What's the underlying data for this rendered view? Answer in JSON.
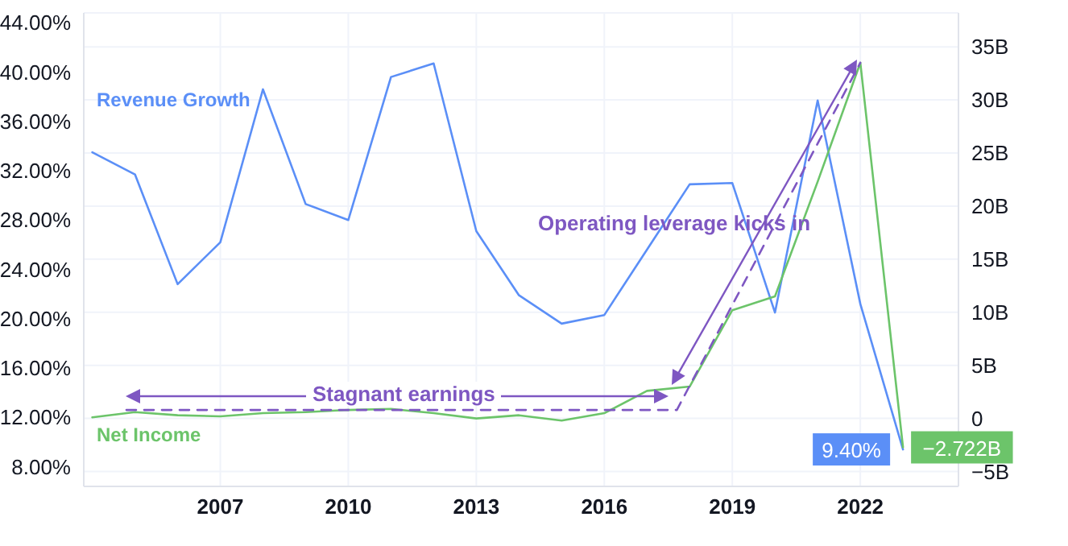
{
  "chart_data": {
    "type": "line",
    "legend": false,
    "grid": true,
    "marker": "none",
    "xlim": [
      2003.8,
      2024.3
    ],
    "xticks": [
      2007,
      2010,
      2013,
      2016,
      2019,
      2022
    ],
    "ylim": [
      6.4,
      44.8
    ],
    "yticks": [
      {
        "value": 8,
        "label": "8.00%"
      },
      {
        "value": 12,
        "label": "12.00%"
      },
      {
        "value": 16,
        "label": "16.00%"
      },
      {
        "value": 20,
        "label": "20.00%"
      },
      {
        "value": 24,
        "label": "24.00%"
      },
      {
        "value": 28,
        "label": "28.00%"
      },
      {
        "value": 32,
        "label": "32.00%"
      },
      {
        "value": 36,
        "label": "36.00%"
      },
      {
        "value": 40,
        "label": "40.00%"
      },
      {
        "value": 44,
        "label": "44.00%"
      }
    ],
    "y2lim": [
      -6.4,
      38.2
    ],
    "y2ticks": [
      {
        "value": -5,
        "label": "−5B"
      },
      0,
      {
        "value": 5,
        "label": "5B"
      },
      {
        "value": 10,
        "label": "10B"
      },
      {
        "value": 15,
        "label": "15B"
      },
      {
        "value": 20,
        "label": "20B"
      },
      {
        "value": 25,
        "label": "25B"
      },
      {
        "value": 30,
        "label": "30B"
      },
      {
        "value": 35,
        "label": "35B"
      }
    ],
    "series": [
      {
        "name": "Revenue Growth",
        "color": "#5b8ff7",
        "x": [
          2004,
          2005,
          2006,
          2007,
          2008,
          2009,
          2010,
          2011,
          2012,
          2013,
          2014,
          2015,
          2016,
          2017,
          2018,
          2019,
          2020,
          2021,
          2022,
          2023
        ],
        "values": [
          33.5,
          31.7,
          22.8,
          26.2,
          38.6,
          29.3,
          28.0,
          39.6,
          40.7,
          27.1,
          21.9,
          19.6,
          20.3,
          25.6,
          30.9,
          31.0,
          20.5,
          37.7,
          21.2,
          9.4
        ],
        "value_labels": [
          null,
          null,
          null,
          null,
          null,
          null,
          null,
          null,
          null,
          null,
          null,
          null,
          null,
          null,
          null,
          null,
          null,
          null,
          null,
          "9.40%"
        ]
      },
      {
        "name": "Net Income",
        "color": "#6cc46a",
        "axis": "y2",
        "x": [
          2004,
          2005,
          2006,
          2007,
          2008,
          2009,
          2010,
          2011,
          2012,
          2013,
          2014,
          2015,
          2016,
          2017,
          2018,
          2019,
          2020,
          2021,
          2022,
          2023
        ],
        "values": [
          0.1,
          0.6,
          0.3,
          0.2,
          0.5,
          0.6,
          0.8,
          0.9,
          0.5,
          0.0,
          0.3,
          -0.2,
          0.5,
          2.6,
          3.0,
          10.2,
          11.5,
          22.3,
          33.5,
          -2.722
        ],
        "value_labels": [
          null,
          null,
          null,
          null,
          null,
          null,
          null,
          null,
          null,
          null,
          null,
          null,
          null,
          null,
          null,
          null,
          null,
          null,
          null,
          "−2.722B"
        ]
      },
      {
        "type": "line",
        "color": "#7e57c2",
        "axis": "y2",
        "line_style": "dashed",
        "x": [
          2004.8,
          2017.7,
          2022
        ],
        "values": [
          0.8,
          0.8,
          33.5
        ]
      }
    ],
    "annotations": [
      "Stagnant earnings",
      "Operating leverage kicks in"
    ]
  }
}
